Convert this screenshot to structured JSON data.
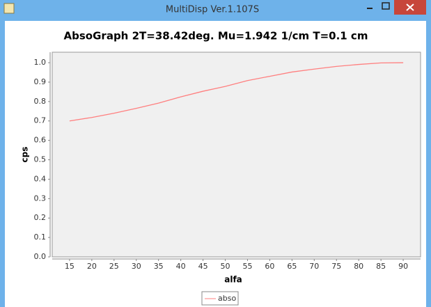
{
  "window": {
    "title": "MultiDisp Ver.1.107S"
  },
  "chart_data": {
    "type": "line",
    "title": "AbsoGraph 2T=38.42deg. Mu=1.942 1/cm T=0.1 cm",
    "x_label": "alfa",
    "y_label": "cps",
    "x": [
      15,
      20,
      25,
      30,
      35,
      40,
      45,
      50,
      55,
      60,
      65,
      70,
      75,
      80,
      85,
      90
    ],
    "series": [
      {
        "name": "abso",
        "color": "#ff7f7f",
        "values": [
          0.7,
          0.718,
          0.74,
          0.765,
          0.792,
          0.824,
          0.853,
          0.878,
          0.908,
          0.93,
          0.952,
          0.967,
          0.981,
          0.991,
          0.999,
          1.0
        ]
      }
    ],
    "xlim": [
      11.1,
      93.9
    ],
    "ylim": [
      0,
      1.054
    ],
    "xticks": [
      15,
      20,
      25,
      30,
      35,
      40,
      45,
      50,
      55,
      60,
      65,
      70,
      75,
      80,
      85,
      90
    ],
    "yticks": [
      {
        "value": 0,
        "label": "0.0"
      },
      {
        "value": 0.1,
        "label": "0.1"
      },
      {
        "value": 0.2,
        "label": "0.2"
      },
      {
        "value": 0.3,
        "label": "0.3"
      },
      {
        "value": 0.4,
        "label": "0.4"
      },
      {
        "value": 0.5,
        "label": "0.5"
      },
      {
        "value": 0.6,
        "label": "0.6"
      },
      {
        "value": 0.7,
        "label": "0.7"
      },
      {
        "value": 0.8,
        "label": "0.8"
      },
      {
        "value": 0.9,
        "label": "0.9"
      },
      {
        "value": 1.0,
        "label": "1.0"
      }
    ],
    "grid": false,
    "legend": "bottom"
  }
}
